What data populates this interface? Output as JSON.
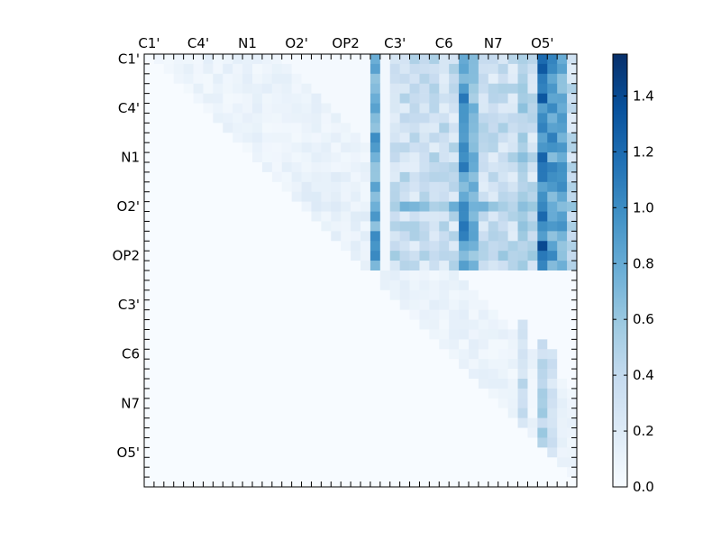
{
  "chart_data": {
    "type": "heatmap",
    "title": "",
    "xlabel": "",
    "ylabel": "",
    "n": 44,
    "x_tick_labels": [
      "C1'",
      "C4'",
      "N1",
      "O2'",
      "OP2",
      "C3'",
      "C6",
      "N7",
      "O5'"
    ],
    "y_tick_labels": [
      "C1'",
      "C4'",
      "N1",
      "O2'",
      "OP2",
      "C3'",
      "C6",
      "N7",
      "O5'"
    ],
    "label_indices": [
      0,
      5,
      10,
      15,
      20,
      25,
      30,
      35,
      40
    ],
    "colormap": "Blues",
    "colorbar": {
      "min": 0.0,
      "max": 1.55,
      "ticks": [
        "0.0",
        "0.2",
        "0.4",
        "0.6",
        "0.8",
        "1.0",
        "1.2",
        "1.4"
      ],
      "tick_values": [
        0.0,
        0.2,
        0.4,
        0.6,
        0.8,
        1.0,
        1.2,
        1.4
      ]
    },
    "upper_triangle": true,
    "strong_block": {
      "rows": [
        0,
        21
      ],
      "cols": [
        23,
        43
      ],
      "typical": 0.35
    },
    "highlight_cols": [
      {
        "col": 23,
        "value": 0.85
      },
      {
        "col": 32,
        "value": 0.95
      },
      {
        "col": 33,
        "value": 0.75
      },
      {
        "col": 38,
        "value": 0.55
      },
      {
        "col": 40,
        "value": 1.2
      },
      {
        "col": 41,
        "value": 0.9
      },
      {
        "col": 42,
        "value": 0.85
      }
    ],
    "highlight_rows": [
      {
        "row": 15,
        "value": 0.7
      },
      {
        "row": 20,
        "value": 0.5
      }
    ],
    "lower_right_block": {
      "rows": [
        22,
        43
      ],
      "cols": [
        24,
        43
      ],
      "typical": 0.12
    },
    "lower_right_highlight_cols": [
      {
        "col": 38,
        "value": 0.45
      },
      {
        "col": 40,
        "value": 0.55
      },
      {
        "col": 41,
        "value": 0.35
      }
    ],
    "upper_left_block": {
      "rows": [
        0,
        21
      ],
      "cols": [
        1,
        22
      ],
      "typical": 0.12
    }
  }
}
